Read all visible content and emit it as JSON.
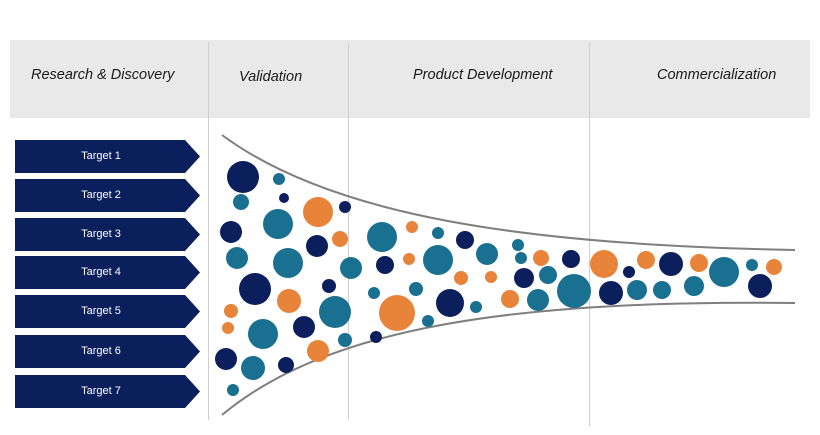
{
  "phases": {
    "research": "Research & Discovery",
    "validation": "Validation",
    "product_development": "Product Development",
    "commercialization": "Commercialization"
  },
  "targets": [
    "Target 1",
    "Target 2",
    "Target 3",
    "Target 4",
    "Target 5",
    "Target 6",
    "Target 7"
  ],
  "colors": {
    "navy": "#0b1f5c",
    "teal": "#1a7090",
    "orange": "#e8833a",
    "header_bg": "#e9e9e9",
    "funnel_line": "#7f7f7f"
  }
}
